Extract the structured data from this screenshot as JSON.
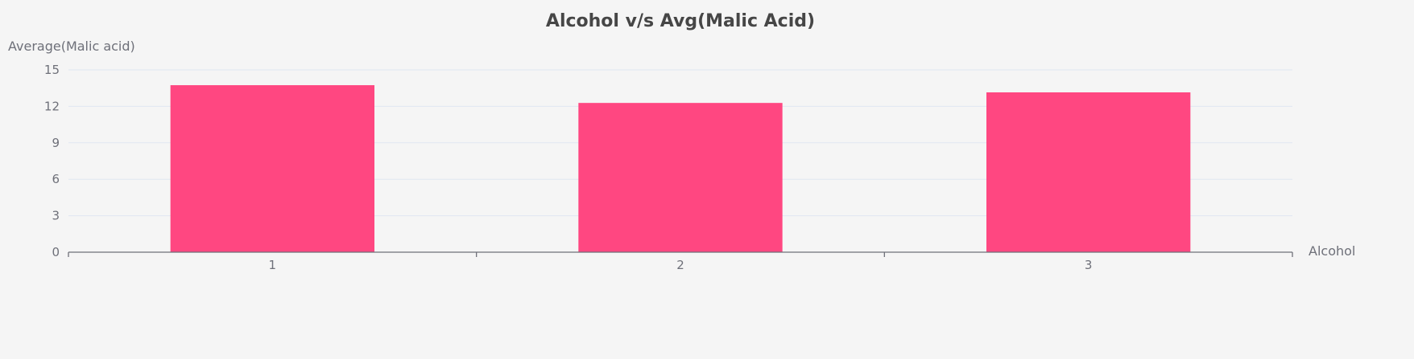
{
  "chart_data": {
    "type": "bar",
    "title": "Alcohol v/s Avg(Malic Acid)",
    "xlabel": "Alcohol",
    "ylabel": "Average(Malic acid)",
    "categories": [
      "1",
      "2",
      "3"
    ],
    "values": [
      13.74,
      12.28,
      13.15
    ],
    "ylim": [
      0,
      15
    ],
    "yticks": [
      "0",
      "3",
      "6",
      "9",
      "12",
      "15"
    ],
    "grid": true,
    "bar_color": "#ff4781",
    "axis_color": "#6e7079",
    "grid_color": "#e0e6f1"
  }
}
